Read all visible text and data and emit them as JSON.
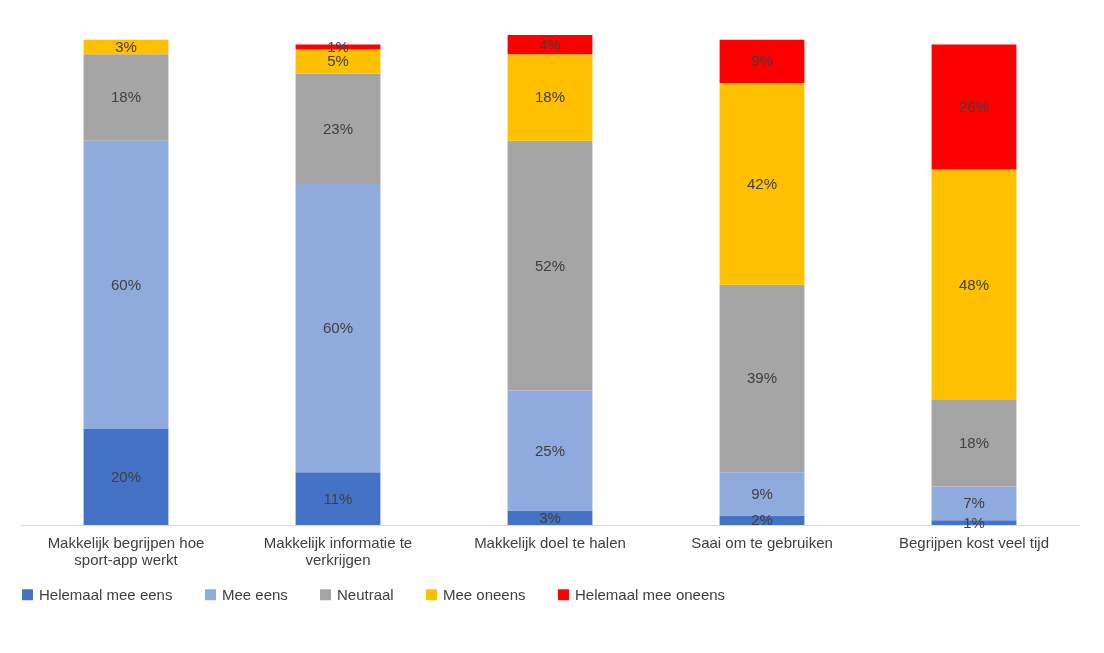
{
  "chart_data": {
    "type": "bar",
    "stacked": true,
    "legend": "bottom",
    "categories": [
      "Makkelijk begrijpen hoe sport-app werkt",
      "Makkelijk informatie te verkrijgen",
      "Makkelijk doel te halen",
      "Saai om te gebruiken",
      "Begrijpen kost veel tijd"
    ],
    "series": [
      {
        "name": "Helemaal mee eens",
        "color": "#4472c4",
        "values": [
          20,
          11,
          3,
          2,
          1
        ],
        "value_labels": [
          "20%",
          "11%",
          "3%",
          "2%",
          "1%"
        ]
      },
      {
        "name": "Mee eens",
        "color": "#8faadc",
        "values": [
          60,
          60,
          25,
          9,
          7
        ],
        "value_labels": [
          "60%",
          "60%",
          "25%",
          "9%",
          "7%"
        ]
      },
      {
        "name": "Neutraal",
        "color": "#a5a5a5",
        "values": [
          18,
          23,
          52,
          39,
          18
        ],
        "value_labels": [
          "18%",
          "23%",
          "52%",
          "39%",
          "18%"
        ]
      },
      {
        "name": "Mee oneens",
        "color": "#ffc000",
        "values": [
          3,
          5,
          18,
          42,
          48
        ],
        "value_labels": [
          "3%",
          "5%",
          "18%",
          "42%",
          "48%"
        ]
      },
      {
        "name": "Helemaal mee oneens",
        "color": "#ff0000",
        "values": [
          null,
          1,
          4,
          9,
          26
        ],
        "value_labels": [
          null,
          "1%",
          "4%",
          "9%",
          "26%"
        ]
      }
    ]
  }
}
